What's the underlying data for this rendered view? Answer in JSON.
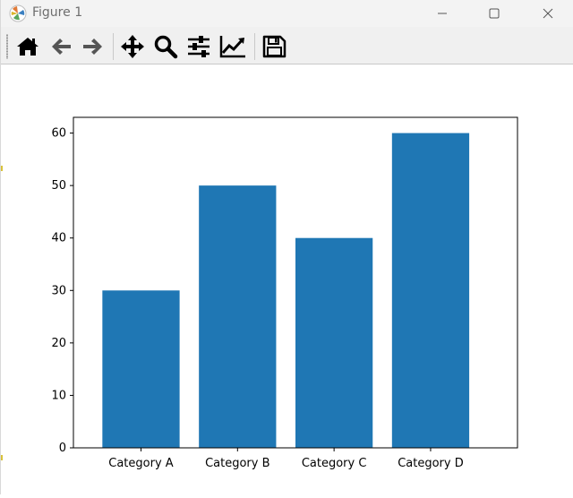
{
  "window": {
    "title": "Figure 1",
    "app_icon": "matplotlib-logo-icon",
    "controls": {
      "minimize": "minimize-icon",
      "maximize": "maximize-icon",
      "close": "close-icon"
    }
  },
  "toolbar": {
    "buttons": [
      {
        "name": "home",
        "icon": "home-icon"
      },
      {
        "name": "back",
        "icon": "arrow-left-icon"
      },
      {
        "name": "forward",
        "icon": "arrow-right-icon"
      },
      {
        "name": "pan",
        "icon": "move-icon"
      },
      {
        "name": "zoom",
        "icon": "magnifier-icon"
      },
      {
        "name": "configure-subplots",
        "icon": "sliders-icon"
      },
      {
        "name": "edit-axis",
        "icon": "line-chart-icon"
      },
      {
        "name": "save",
        "icon": "floppy-disk-icon"
      }
    ]
  },
  "colors": {
    "bar": "#1f77b4",
    "axis": "#000000",
    "titlebar": "#f3f3f3",
    "toolbar": "#f0f0f0"
  },
  "chart_data": {
    "type": "bar",
    "categories": [
      "Category A",
      "Category B",
      "Category C",
      "Category D"
    ],
    "values": [
      30,
      50,
      40,
      60
    ],
    "title": "",
    "xlabel": "",
    "ylabel": "",
    "ylim": [
      0,
      63
    ],
    "yticks": [
      0,
      10,
      20,
      30,
      40,
      50,
      60
    ],
    "grid": false
  }
}
